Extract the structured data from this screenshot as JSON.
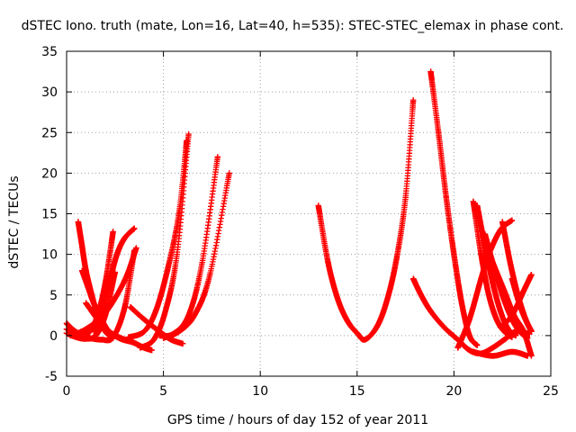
{
  "chart_data": {
    "type": "scatter",
    "title": "dSTEC Iono. truth (mate, Lon=16, Lat=40, h=535): STEC-STEC_elemax in phase cont.",
    "xlabel": "GPS time / hours of day 152 of year 2011",
    "ylabel": "dSTEC  / TECUs",
    "xlim": [
      0,
      25
    ],
    "ylim": [
      -5,
      35
    ],
    "xticks": [
      0,
      5,
      10,
      15,
      20,
      25
    ],
    "yticks": [
      -5,
      0,
      5,
      10,
      15,
      20,
      25,
      30,
      35
    ],
    "xtick_labels": [
      "0",
      "5",
      "10",
      "15",
      "20",
      "25"
    ],
    "ytick_labels": [
      "-5",
      "0",
      "5",
      "10",
      "15",
      "20",
      "25",
      "30",
      "35"
    ],
    "grid": true,
    "legend": "none",
    "marker": "+",
    "color": "#ff0000",
    "series": [
      {
        "x": [
          0.0,
          0.4,
          0.8,
          1.2,
          1.6,
          2.0,
          2.4
        ],
        "y": [
          1.5,
          0.6,
          0.1,
          0.5,
          2.5,
          6.5,
          12.8
        ]
      },
      {
        "x": [
          0.0,
          0.5,
          1.0,
          1.5,
          2.0,
          2.5
        ],
        "y": [
          0.3,
          -0.2,
          -0.4,
          0.0,
          2.5,
          7.8
        ]
      },
      {
        "x": [
          0.0,
          0.6,
          1.2,
          1.8,
          2.4,
          3.0,
          3.5
        ],
        "y": [
          0.8,
          0.1,
          -0.3,
          -0.5,
          -0.2,
          3.5,
          10.5
        ]
      },
      {
        "x": [
          0.6,
          0.8,
          1.0,
          1.3,
          1.6,
          2.0,
          2.4
        ],
        "y": [
          14.0,
          11.0,
          8.0,
          5.0,
          2.5,
          0.5,
          -0.3
        ]
      },
      {
        "x": [
          0.8,
          1.1,
          1.4,
          1.8,
          2.2,
          2.8,
          3.4
        ],
        "y": [
          8.0,
          6.0,
          4.0,
          2.0,
          0.5,
          -0.4,
          -0.8
        ]
      },
      {
        "x": [
          1.0,
          1.6,
          2.2,
          2.8,
          3.4,
          4.0,
          4.4
        ],
        "y": [
          4.0,
          2.0,
          0.5,
          -0.3,
          -0.8,
          -1.5,
          -1.8
        ]
      },
      {
        "x": [
          1.4,
          1.8,
          2.2,
          2.6,
          3.0,
          3.5
        ],
        "y": [
          0.5,
          3.0,
          6.5,
          10.0,
          12.0,
          13.2
        ]
      },
      {
        "x": [
          0.2,
          1.0,
          2.0,
          3.0,
          3.6
        ],
        "y": [
          0.0,
          0.8,
          2.8,
          6.8,
          10.8
        ]
      },
      {
        "x": [
          3.3,
          4.0,
          4.8,
          5.4,
          6.0
        ],
        "y": [
          3.5,
          2.0,
          0.5,
          -0.5,
          -1.0
        ]
      },
      {
        "x": [
          3.2,
          4.0,
          4.6,
          5.2,
          5.8,
          6.2
        ],
        "y": [
          -0.2,
          0.5,
          3.0,
          8.0,
          15.0,
          24.0
        ]
      },
      {
        "x": [
          3.8,
          4.5,
          5.1,
          5.7,
          6.3
        ],
        "y": [
          -1.5,
          -0.5,
          3.0,
          10.0,
          24.8
        ]
      },
      {
        "x": [
          4.8,
          5.5,
          6.3,
          7.0,
          7.8
        ],
        "y": [
          0.0,
          0.2,
          2.5,
          9.0,
          22.0
        ]
      },
      {
        "x": [
          5.0,
          5.8,
          6.6,
          7.4,
          8.4
        ],
        "y": [
          -0.3,
          0.5,
          2.5,
          7.5,
          20.0
        ]
      },
      {
        "x": [
          13.0,
          13.5,
          14.0,
          14.5,
          15.0,
          15.4,
          16.0,
          16.5,
          17.0,
          17.5,
          17.9
        ],
        "y": [
          16.0,
          9.0,
          4.5,
          1.8,
          0.3,
          -0.5,
          1.0,
          4.0,
          9.0,
          17.0,
          29.0
        ]
      },
      {
        "x": [
          17.9,
          18.3,
          18.8,
          19.5,
          20.2,
          20.8,
          21.4,
          22.0,
          22.6,
          23.2,
          23.9
        ],
        "y": [
          7.0,
          5.0,
          3.0,
          1.0,
          -0.5,
          -1.8,
          -2.2,
          -1.5,
          -0.5,
          0.5,
          0.2
        ]
      },
      {
        "x": [
          18.8,
          19.2,
          19.6,
          20.0,
          20.4,
          20.8,
          21.2
        ],
        "y": [
          32.5,
          25.0,
          17.0,
          10.0,
          4.0,
          0.0,
          -1.2
        ]
      },
      {
        "x": [
          20.2,
          20.8,
          21.4,
          21.8,
          22.4,
          23.0
        ],
        "y": [
          -1.5,
          2.0,
          7.0,
          10.0,
          13.0,
          14.2
        ]
      },
      {
        "x": [
          21.0,
          21.4,
          21.8,
          22.2,
          22.6,
          23.0
        ],
        "y": [
          16.5,
          10.0,
          5.0,
          2.0,
          0.5,
          -0.2
        ]
      },
      {
        "x": [
          21.2,
          21.6,
          22.0,
          22.4,
          22.8,
          23.2
        ],
        "y": [
          16.0,
          11.0,
          6.5,
          3.0,
          0.8,
          0.0
        ]
      },
      {
        "x": [
          21.6,
          22.0,
          22.5,
          23.0,
          23.4,
          23.8
        ],
        "y": [
          12.5,
          9.0,
          5.0,
          2.0,
          0.5,
          -0.3
        ]
      },
      {
        "x": [
          22.0,
          22.6,
          23.1,
          23.6,
          24.0
        ],
        "y": [
          9.0,
          5.5,
          2.5,
          0.5,
          -2.5
        ]
      },
      {
        "x": [
          22.5,
          22.9,
          23.3,
          23.7,
          24.0
        ],
        "y": [
          14.0,
          9.0,
          5.0,
          2.0,
          0.5
        ]
      },
      {
        "x": [
          23.0,
          23.3,
          23.6,
          24.0
        ],
        "y": [
          7.0,
          4.5,
          2.5,
          0.5
        ]
      },
      {
        "x": [
          22.4,
          23.0,
          23.6,
          24.0
        ],
        "y": [
          1.0,
          2.5,
          5.5,
          7.5
        ]
      },
      {
        "x": [
          21.0,
          22.0,
          23.0,
          23.8
        ],
        "y": [
          -2.0,
          -2.5,
          -2.0,
          -2.5
        ]
      }
    ]
  }
}
